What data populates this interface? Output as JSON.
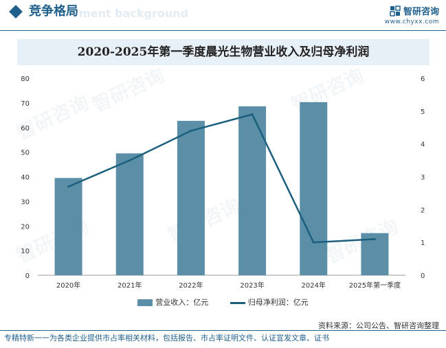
{
  "header": {
    "title": "竞争格局",
    "watermark": "ment background",
    "brand_name": "智研咨询",
    "brand_url": "www.chyxx.com"
  },
  "chart_data": {
    "type": "bar",
    "title": "2020-2025年第一季度晨光生物营业收入及归母净利润",
    "categories": [
      "2020年",
      "2021年",
      "2022年",
      "2023年",
      "2024年",
      "2025年第一季度"
    ],
    "series": [
      {
        "name": "营业收入：亿元",
        "type": "bar",
        "axis": "left",
        "color": "#5b8fa8",
        "values": [
          39.5,
          49.5,
          62.7,
          68.6,
          70.3,
          17.1
        ]
      },
      {
        "name": "归母净利润：亿元",
        "type": "line",
        "axis": "right",
        "color": "#1b5f7e",
        "values": [
          2.7,
          3.5,
          4.4,
          4.9,
          1.0,
          1.1
        ]
      }
    ],
    "y_left": {
      "min": 0,
      "max": 80,
      "ticks": [
        "0",
        "10",
        "20",
        "30",
        "40",
        "50",
        "60",
        "70",
        "80"
      ]
    },
    "y_right": {
      "min": 0,
      "max": 6,
      "ticks": [
        "0",
        "1",
        "2",
        "3",
        "4",
        "5",
        "6"
      ]
    },
    "legend_position": "bottom"
  },
  "source": "资料来源：公司公告、智研咨询整理",
  "footer": "专精特新一一为各类企业提供市占率相关材料，包括报告、市占率证明文件、认证宣发文章、证书",
  "watermarks": [
    "智研咨询",
    "智研咨询",
    "智研咨询",
    "智研咨询",
    "智研咨询",
    "智研咨询"
  ]
}
